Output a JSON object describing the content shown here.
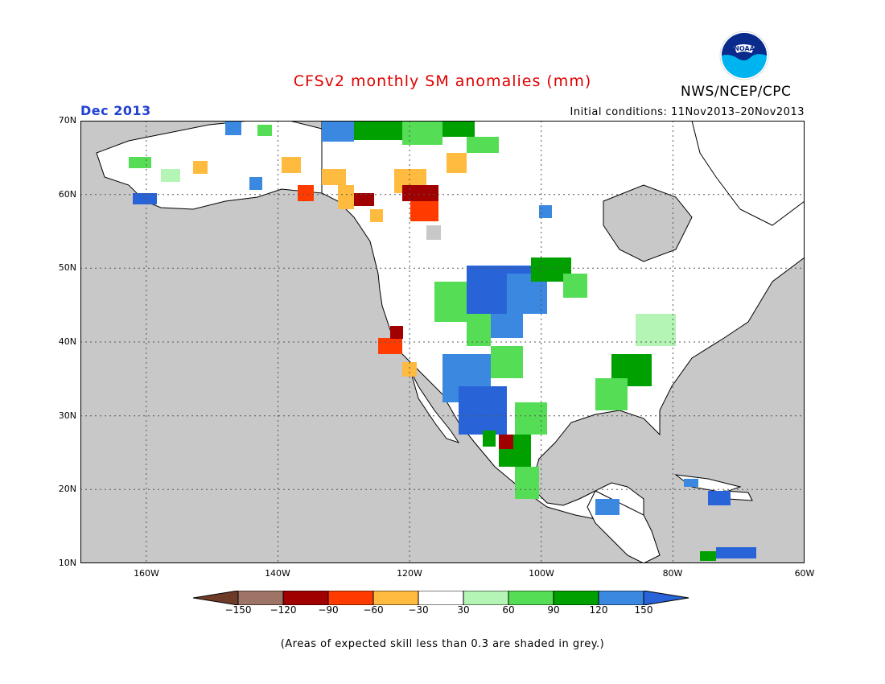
{
  "header": {
    "title": "CFSv2 monthly SM anomalies (mm)",
    "agency": "NWS/NCEP/CPC",
    "month": "Dec 2013",
    "initial_conditions": "Initial conditions: 11Nov2013–20Nov2013"
  },
  "logo": {
    "icon": "noaa-logo-icon",
    "text": "NOAA"
  },
  "map": {
    "extent": {
      "lon": [
        -170,
        -60
      ],
      "lat": [
        10,
        70
      ]
    },
    "grid": true,
    "ocean_color": "#c8c8c8",
    "land_color": "#ffffff",
    "lat_labels": [
      "70N",
      "60N",
      "50N",
      "40N",
      "30N",
      "20N",
      "10N"
    ],
    "lon_labels": [
      "160W",
      "140W",
      "120W",
      "100W",
      "80W",
      "60W"
    ]
  },
  "legend": {
    "labels": [
      "−150",
      "−120",
      "−90",
      "−60",
      "−30",
      "30",
      "60",
      "90",
      "120",
      "150"
    ],
    "colors": [
      "#6e3b28",
      "#9e7467",
      "#a00000",
      "#ff3b00",
      "#ffba40",
      "#ffffff",
      "#b4f4b4",
      "#55de55",
      "#00a000",
      "#3a88e0",
      "#2864d8"
    ]
  },
  "footnote": "(Areas of expected skill less than 0.3 are shaded in grey.)"
}
